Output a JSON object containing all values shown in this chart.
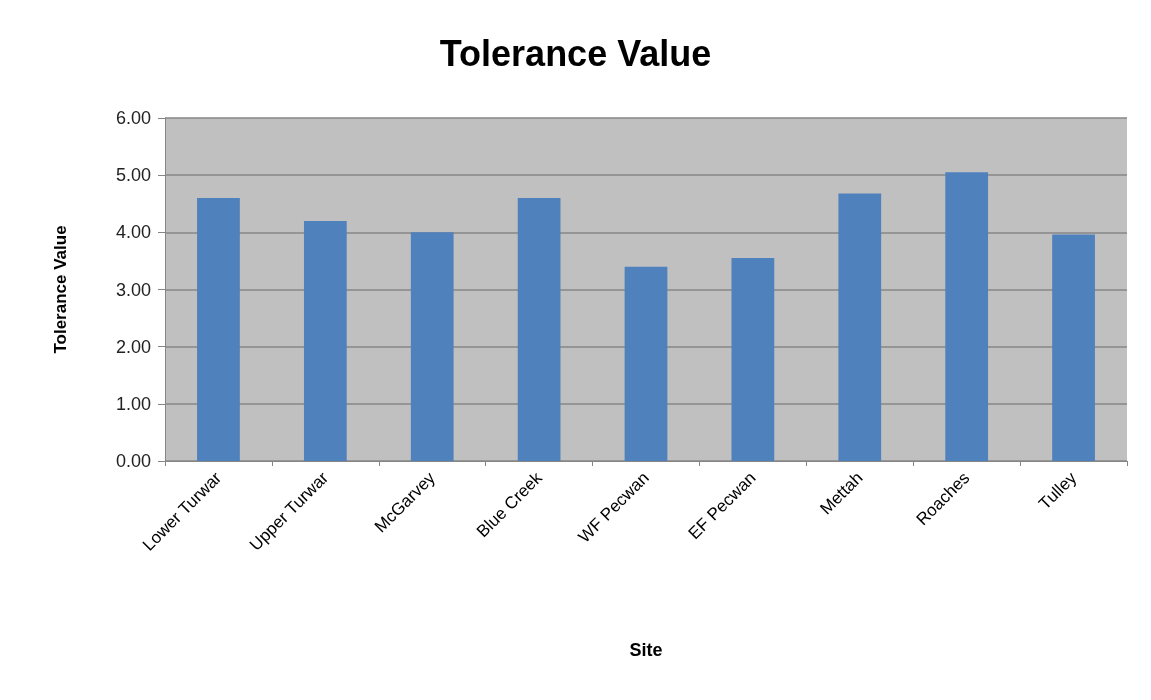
{
  "chart_data": {
    "type": "bar",
    "title": "Tolerance Value",
    "xlabel": "Site",
    "ylabel": "Tolerance Value",
    "categories": [
      "Lower Turwar",
      "Upper Turwar",
      "McGarvey",
      "Blue Creek",
      "WF Pecwan",
      "EF Pecwan",
      "Mettah",
      "Roaches",
      "Tulley"
    ],
    "values": [
      4.6,
      4.2,
      4.0,
      4.6,
      3.4,
      3.55,
      4.68,
      5.05,
      3.96
    ],
    "color": "#4f81bd",
    "ylim": [
      0,
      6
    ],
    "yticks": [
      {
        "value": 0,
        "label": "0.00"
      },
      {
        "value": 1,
        "label": "1.00"
      },
      {
        "value": 2,
        "label": "2.00"
      },
      {
        "value": 3,
        "label": "3.00"
      },
      {
        "value": 4,
        "label": "4.00"
      },
      {
        "value": 5,
        "label": "5.00"
      },
      {
        "value": 6,
        "label": "6.00"
      }
    ],
    "grid": "y"
  }
}
